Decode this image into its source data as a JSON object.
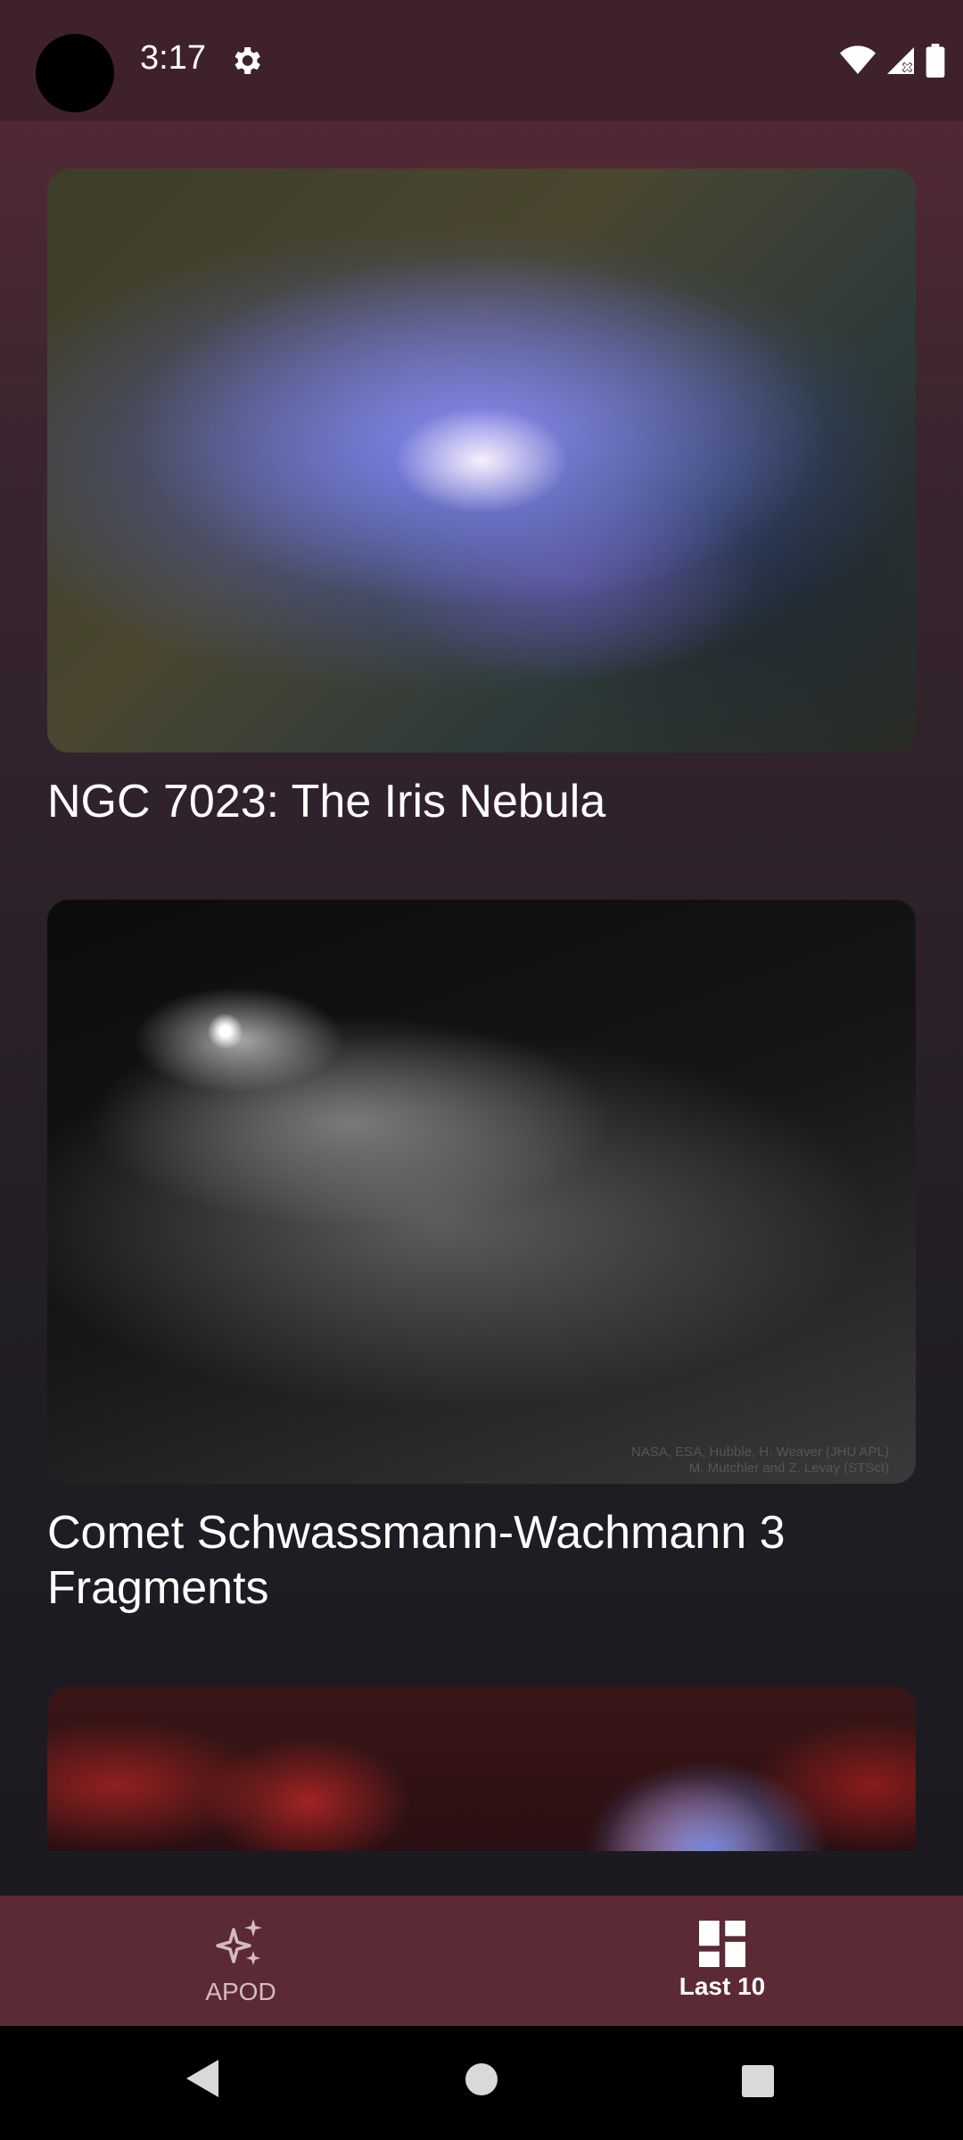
{
  "status_bar": {
    "time": "3:17"
  },
  "feed": {
    "items": [
      {
        "title": "NGC 7023: The Iris Nebula"
      },
      {
        "title": "Comet Schwassmann-Wachmann 3 Fragments",
        "image_credit": [
          "NASA, ESA, Hubble, H. Weaver (JHU APL)",
          "M. Mutchler and Z. Levay (STScI)"
        ]
      },
      {
        "title": ""
      }
    ]
  },
  "bottom_nav": {
    "items": [
      {
        "label": "APOD",
        "icon": "sparkle-icon",
        "selected": false
      },
      {
        "label": "Last 10",
        "icon": "dashboard-icon",
        "selected": true
      }
    ]
  },
  "colors": {
    "status_bar_bg": "#3f2229",
    "bottom_nav_bg": "#5c2a34",
    "selected_text": "#ffffff",
    "unselected_text": "#d3bcc0"
  }
}
